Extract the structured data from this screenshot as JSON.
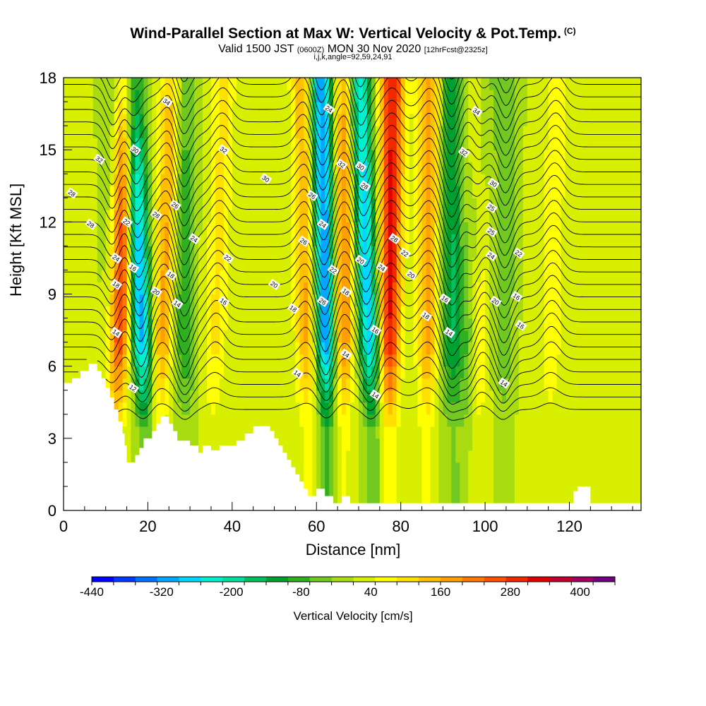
{
  "title": {
    "main": "Wind-Parallel Section at Max W: Vertical Velocity & Pot.Temp.",
    "mark": "(C)",
    "valid_prefix": "Valid 1500 JST",
    "valid_utc": "(0600Z)",
    "valid_date": "MON 30 Nov 2020",
    "forecast": "[12hrFcst@2325z]",
    "indices": "i,j,k,angle=92,59,24,91"
  },
  "chart_data": {
    "type": "heatmap",
    "xlabel": "Distance [nm]",
    "ylabel": "Height [Kft MSL]",
    "xlim": [
      0,
      137
    ],
    "ylim": [
      0,
      18
    ],
    "xticks": [
      "0",
      "20",
      "40",
      "60",
      "80",
      "100",
      "120"
    ],
    "yticks": [
      "0",
      "3",
      "6",
      "9",
      "12",
      "15",
      "18"
    ],
    "colorbar": {
      "label": "Vertical Velocity [cm/s]",
      "range": [
        -440,
        460
      ],
      "tick_values": [
        -440,
        -320,
        -200,
        -80,
        40,
        160,
        280,
        400
      ],
      "tick_labels": [
        "-440",
        "-320",
        "-200",
        "-80",
        "40",
        "160",
        "280",
        "400"
      ],
      "colors": [
        "#0000ff",
        "#0038ff",
        "#0070ff",
        "#00a8ff",
        "#00d8ff",
        "#00f0d0",
        "#00e0a0",
        "#00c060",
        "#00a030",
        "#30b020",
        "#70c820",
        "#a8dc10",
        "#d8f000",
        "#ffff00",
        "#ffe000",
        "#ffc000",
        "#ffa000",
        "#ff7800",
        "#ff5000",
        "#f02800",
        "#e00000",
        "#c00030",
        "#a00060",
        "#700080"
      ]
    },
    "terrain_kft": [
      [
        0,
        5.3
      ],
      [
        2,
        5.3
      ],
      [
        2,
        5.5
      ],
      [
        4,
        5.5
      ],
      [
        4,
        5.8
      ],
      [
        6,
        5.8
      ],
      [
        6,
        6.1
      ],
      [
        8,
        6.1
      ],
      [
        8,
        5.8
      ],
      [
        9,
        5.8
      ],
      [
        9,
        5.5
      ],
      [
        10,
        5.5
      ],
      [
        10,
        5.1
      ],
      [
        11,
        5.1
      ],
      [
        11,
        4.7
      ],
      [
        12,
        4.7
      ],
      [
        12,
        4.2
      ],
      [
        13,
        4.2
      ],
      [
        13,
        3.7
      ],
      [
        14,
        3.7
      ],
      [
        14,
        3.2
      ],
      [
        14.5,
        3.2
      ],
      [
        14.5,
        2.7
      ],
      [
        15,
        2.7
      ],
      [
        15,
        2.0
      ],
      [
        17,
        2.0
      ],
      [
        17,
        2.3
      ],
      [
        18,
        2.3
      ],
      [
        18,
        2.6
      ],
      [
        19,
        2.6
      ],
      [
        19,
        3.0
      ],
      [
        21,
        3.0
      ],
      [
        21,
        3.3
      ],
      [
        22,
        3.3
      ],
      [
        22,
        3.6
      ],
      [
        23,
        3.6
      ],
      [
        23,
        3.9
      ],
      [
        25,
        3.9
      ],
      [
        25,
        3.6
      ],
      [
        26,
        3.6
      ],
      [
        26,
        3.3
      ],
      [
        27,
        3.3
      ],
      [
        27,
        2.9
      ],
      [
        30,
        2.9
      ],
      [
        30,
        2.7
      ],
      [
        32,
        2.7
      ],
      [
        32,
        2.4
      ],
      [
        33,
        2.4
      ],
      [
        33,
        2.7
      ],
      [
        35,
        2.7
      ],
      [
        35,
        2.5
      ],
      [
        37,
        2.5
      ],
      [
        37,
        2.7
      ],
      [
        41,
        2.7
      ],
      [
        41,
        2.9
      ],
      [
        43,
        2.9
      ],
      [
        43,
        3.2
      ],
      [
        45,
        3.2
      ],
      [
        45,
        3.5
      ],
      [
        49,
        3.5
      ],
      [
        49,
        3.3
      ],
      [
        50,
        3.3
      ],
      [
        50,
        3.0
      ],
      [
        51,
        3.0
      ],
      [
        51,
        2.7
      ],
      [
        52,
        2.7
      ],
      [
        52,
        2.4
      ],
      [
        53,
        2.4
      ],
      [
        53,
        2.1
      ],
      [
        54,
        2.1
      ],
      [
        54,
        1.8
      ],
      [
        55,
        1.8
      ],
      [
        55,
        1.5
      ],
      [
        56,
        1.5
      ],
      [
        56,
        1.2
      ],
      [
        57,
        1.2
      ],
      [
        57,
        0.9
      ],
      [
        58,
        0.9
      ],
      [
        58,
        0.6
      ],
      [
        60,
        0.6
      ],
      [
        60,
        0.9
      ],
      [
        62,
        0.9
      ],
      [
        62,
        0.6
      ],
      [
        64,
        0.6
      ],
      [
        64,
        0.3
      ],
      [
        66,
        0.3
      ],
      [
        66,
        0.6
      ],
      [
        68,
        0.6
      ],
      [
        68,
        0.3
      ],
      [
        70,
        0.3
      ],
      [
        70,
        0.3
      ],
      [
        72,
        0.3
      ],
      [
        72,
        0.3
      ],
      [
        120,
        0.3
      ],
      [
        120,
        0.3
      ],
      [
        121,
        0.3
      ],
      [
        121,
        0.8
      ],
      [
        122,
        0.8
      ],
      [
        122,
        1.0
      ],
      [
        125,
        1.0
      ],
      [
        125,
        0.3
      ],
      [
        137,
        0.3
      ]
    ],
    "updrafts_nm": [
      {
        "x_low": 12,
        "x_high": 15,
        "peak_cm_s": 320
      },
      {
        "x_low": 22,
        "x_high": 26,
        "peak_cm_s": 160
      },
      {
        "x_low": 35,
        "x_high": 38,
        "peak_cm_s": 80
      },
      {
        "x_low": 58,
        "x_high": 57,
        "peak_cm_s": 160
      },
      {
        "x_low": 66,
        "x_high": 67,
        "peak_cm_s": 200
      },
      {
        "x_low": 77,
        "x_high": 78,
        "peak_cm_s": 300
      },
      {
        "x_low": 86,
        "x_high": 87,
        "peak_cm_s": 160
      },
      {
        "x_low": 98,
        "x_high": 98,
        "peak_cm_s": 120
      },
      {
        "x_low": 115,
        "x_high": 117,
        "peak_cm_s": 60
      }
    ],
    "downdrafts_nm": [
      {
        "x_low": 20,
        "x_high": 16,
        "peak_cm_s": -320
      },
      {
        "x_low": 29,
        "x_high": 28,
        "peak_cm_s": -120
      },
      {
        "x_low": 63,
        "x_high": 61,
        "peak_cm_s": -360
      },
      {
        "x_low": 74,
        "x_high": 70,
        "peak_cm_s": -300
      },
      {
        "x_low": 92,
        "x_high": 92,
        "peak_cm_s": -160
      },
      {
        "x_low": 95,
        "x_high": 99,
        "peak_cm_s": -120
      },
      {
        "x_low": 104,
        "x_high": 105,
        "peak_cm_s": -80
      },
      {
        "x_low": 12,
        "x_high": 12,
        "peak_cm_s": -80
      }
    ],
    "theta_contour_labels": [
      {
        "text": "34",
        "x": 24.5,
        "y": 17.0
      },
      {
        "text": "24",
        "x": 63.0,
        "y": 16.7
      },
      {
        "text": "34",
        "x": 98.0,
        "y": 16.6
      },
      {
        "text": "30",
        "x": 17.0,
        "y": 15.0
      },
      {
        "text": "32",
        "x": 38.0,
        "y": 15.0
      },
      {
        "text": "32",
        "x": 95.0,
        "y": 14.9
      },
      {
        "text": "32",
        "x": 8.5,
        "y": 14.6
      },
      {
        "text": "32",
        "x": 66.0,
        "y": 14.4
      },
      {
        "text": "30",
        "x": 70.5,
        "y": 14.3
      },
      {
        "text": "30",
        "x": 48.0,
        "y": 13.8
      },
      {
        "text": "30",
        "x": 102.0,
        "y": 13.6
      },
      {
        "text": "28",
        "x": 71.5,
        "y": 13.5
      },
      {
        "text": "28",
        "x": 2.0,
        "y": 13.2
      },
      {
        "text": "26",
        "x": 59.0,
        "y": 13.1
      },
      {
        "text": "26",
        "x": 26.5,
        "y": 12.7
      },
      {
        "text": "25",
        "x": 101.5,
        "y": 12.6
      },
      {
        "text": "28",
        "x": 22.0,
        "y": 12.3
      },
      {
        "text": "22",
        "x": 15.0,
        "y": 12.0
      },
      {
        "text": "28",
        "x": 6.5,
        "y": 11.9
      },
      {
        "text": "24",
        "x": 61.5,
        "y": 11.9
      },
      {
        "text": "25",
        "x": 101.5,
        "y": 11.6
      },
      {
        "text": "28",
        "x": 78.5,
        "y": 11.3
      },
      {
        "text": "24",
        "x": 31.0,
        "y": 11.3
      },
      {
        "text": "26",
        "x": 57.0,
        "y": 11.2
      },
      {
        "text": "22",
        "x": 81.0,
        "y": 10.7
      },
      {
        "text": "22",
        "x": 108.0,
        "y": 10.7
      },
      {
        "text": "24",
        "x": 101.5,
        "y": 10.6
      },
      {
        "text": "24",
        "x": 12.5,
        "y": 10.5
      },
      {
        "text": "22",
        "x": 39.0,
        "y": 10.5
      },
      {
        "text": "20",
        "x": 70.5,
        "y": 10.4
      },
      {
        "text": "24",
        "x": 75.5,
        "y": 10.1
      },
      {
        "text": "16",
        "x": 16.5,
        "y": 10.1
      },
      {
        "text": "22",
        "x": 64.0,
        "y": 10.0
      },
      {
        "text": "20",
        "x": 82.5,
        "y": 9.8
      },
      {
        "text": "18",
        "x": 25.5,
        "y": 9.8
      },
      {
        "text": "20",
        "x": 50.0,
        "y": 9.4
      },
      {
        "text": "18",
        "x": 12.5,
        "y": 9.4
      },
      {
        "text": "18",
        "x": 67.0,
        "y": 9.1
      },
      {
        "text": "20",
        "x": 22.0,
        "y": 9.1
      },
      {
        "text": "16",
        "x": 90.5,
        "y": 8.8
      },
      {
        "text": "16",
        "x": 107.5,
        "y": 8.9
      },
      {
        "text": "26",
        "x": 61.5,
        "y": 8.7
      },
      {
        "text": "16",
        "x": 38.0,
        "y": 8.7
      },
      {
        "text": "14",
        "x": 27.0,
        "y": 8.6
      },
      {
        "text": "20",
        "x": 102.5,
        "y": 8.7
      },
      {
        "text": "18",
        "x": 54.5,
        "y": 8.4
      },
      {
        "text": "18",
        "x": 86.0,
        "y": 8.1
      },
      {
        "text": "16",
        "x": 108.5,
        "y": 7.7
      },
      {
        "text": "16",
        "x": 74.0,
        "y": 7.5
      },
      {
        "text": "14",
        "x": 91.5,
        "y": 7.4
      },
      {
        "text": "14",
        "x": 12.5,
        "y": 7.4
      },
      {
        "text": "14",
        "x": 67.0,
        "y": 6.5
      },
      {
        "text": "14",
        "x": 55.5,
        "y": 5.7
      },
      {
        "text": "14",
        "x": 104.5,
        "y": 5.3
      },
      {
        "text": "12",
        "x": 16.5,
        "y": 5.1
      },
      {
        "text": "14",
        "x": 74.0,
        "y": 4.8
      }
    ]
  }
}
